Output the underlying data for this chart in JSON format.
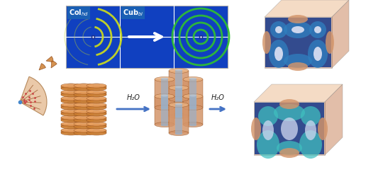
{
  "title": "",
  "bg_color": "#ffffff",
  "arrow_color": "#4472c4",
  "h2o_label": "H₂O",
  "col_label": "Col$_{hd}$",
  "cub_label": "Cub$_{bi}$",
  "col_text_color": "#ffffff",
  "cub_text_color": "#ffffff",
  "box_label_bg": "#1a5fb4",
  "wedge_color": "#d4956a",
  "wedge_fill": "#e8c4a0",
  "cylinder_color": "#cd7f32",
  "cylinder_top": "#e8a060",
  "cylinder_inner": "#9aafc0",
  "diffraction_bg": "#1040c0",
  "diffraction_ring_col": "#c8d820",
  "diffraction_ring_cub": "#30c030",
  "cube_orange": "#d4956a",
  "cube_blue_dark": "#1a3a8a",
  "cube_blue_mid": "#3080c0",
  "cube_cyan": "#40c0c0",
  "cube_white": "#e8e8f8"
}
